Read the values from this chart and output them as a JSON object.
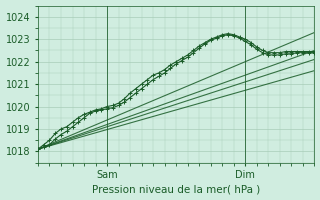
{
  "title": "",
  "xlabel": "Pression niveau de la mer( hPa )",
  "ylabel": "",
  "bg_color": "#d0ede0",
  "grid_color": "#a8cdb8",
  "line_color": "#1a5c28",
  "ylim": [
    1017.5,
    1024.5
  ],
  "xlim": [
    0,
    96
  ],
  "yticks": [
    1018,
    1019,
    1020,
    1021,
    1022,
    1023,
    1024
  ],
  "xtick_positions": [
    24,
    72
  ],
  "xtick_labels": [
    "Sam",
    "Dim"
  ],
  "vline_positions": [
    24,
    72
  ],
  "straight_lines": [
    {
      "x0": 0,
      "y0": 1018.1,
      "x1": 96,
      "y1": 1022.5
    },
    {
      "x0": 0,
      "y0": 1018.1,
      "x1": 96,
      "y1": 1021.6
    },
    {
      "x0": 0,
      "y0": 1018.1,
      "x1": 96,
      "y1": 1022.1
    },
    {
      "x0": 0,
      "y0": 1018.1,
      "x1": 96,
      "y1": 1023.3
    }
  ],
  "jagged_x": [
    0,
    2,
    4,
    6,
    8,
    10,
    12,
    14,
    16,
    18,
    20,
    22,
    24,
    26,
    28,
    30,
    32,
    34,
    36,
    38,
    40,
    42,
    44,
    46,
    48,
    50,
    52,
    54,
    56,
    58,
    60,
    62,
    64,
    66,
    68,
    70,
    72,
    74,
    76,
    78,
    80,
    82,
    84,
    86,
    88,
    90,
    92,
    94,
    96
  ],
  "jagged_series": [
    [
      1018.1,
      1018.3,
      1018.5,
      1018.8,
      1019.0,
      1019.1,
      1019.3,
      1019.5,
      1019.65,
      1019.75,
      1019.85,
      1019.9,
      1020.0,
      1020.05,
      1020.15,
      1020.35,
      1020.6,
      1020.8,
      1021.0,
      1021.2,
      1021.4,
      1021.5,
      1021.65,
      1021.85,
      1022.0,
      1022.15,
      1022.3,
      1022.5,
      1022.7,
      1022.85,
      1023.0,
      1023.1,
      1023.2,
      1023.25,
      1023.2,
      1023.1,
      1023.0,
      1022.85,
      1022.65,
      1022.5,
      1022.4,
      1022.4,
      1022.4,
      1022.45,
      1022.45,
      1022.45,
      1022.45,
      1022.45,
      1022.45
    ],
    [
      1018.1,
      1018.2,
      1018.3,
      1018.55,
      1018.75,
      1018.9,
      1019.1,
      1019.3,
      1019.5,
      1019.7,
      1019.8,
      1019.85,
      1019.9,
      1019.95,
      1020.05,
      1020.2,
      1020.4,
      1020.6,
      1020.8,
      1021.0,
      1021.2,
      1021.35,
      1021.5,
      1021.7,
      1021.9,
      1022.05,
      1022.2,
      1022.4,
      1022.6,
      1022.8,
      1022.95,
      1023.05,
      1023.15,
      1023.2,
      1023.15,
      1023.05,
      1022.9,
      1022.75,
      1022.55,
      1022.4,
      1022.3,
      1022.3,
      1022.3,
      1022.35,
      1022.35,
      1022.4,
      1022.4,
      1022.4,
      1022.4
    ]
  ]
}
